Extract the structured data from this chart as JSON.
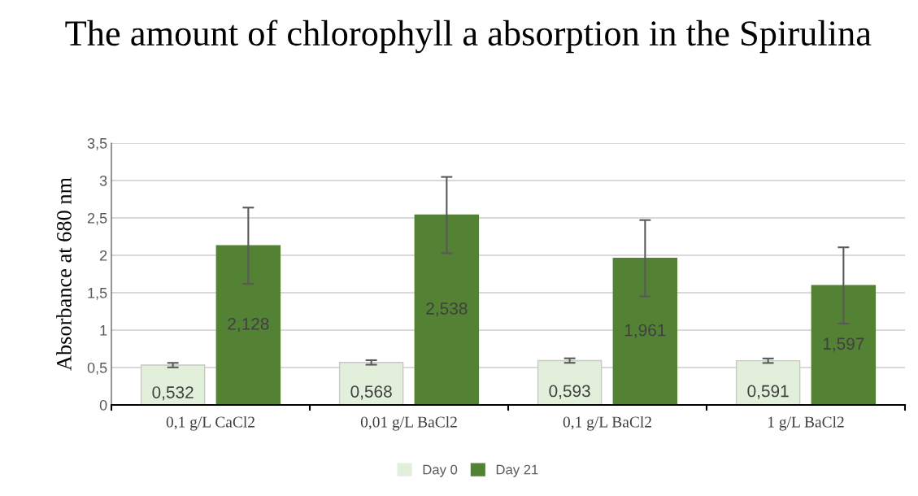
{
  "chart_data": {
    "type": "bar",
    "title": "The amount of chlorophyll a absorption in the Spirulina",
    "ylabel": "Absorbance at 680 nm",
    "categories": [
      "0,1 g/L CaCl2",
      "0,01 g/L BaCl2",
      "0,1 g/L BaCl2",
      "1 g/L BaCl2"
    ],
    "series": [
      {
        "name": "Day 0",
        "color": "#e2efda",
        "values": [
          0.532,
          0.568,
          0.593,
          0.591
        ],
        "errors": [
          0.03,
          0.03,
          0.03,
          0.03
        ],
        "value_labels": [
          "0,532",
          "0,568",
          "0,593",
          "0,591"
        ]
      },
      {
        "name": "Day 21",
        "color": "#548235",
        "values": [
          2.128,
          2.538,
          1.961,
          1.597
        ],
        "errors": [
          0.51,
          0.51,
          0.51,
          0.51
        ],
        "value_labels": [
          "2,128",
          "2,538",
          "1,961",
          "1,597"
        ]
      }
    ],
    "ylim": [
      0,
      3.5
    ],
    "yticks": [
      0,
      {
        "value": 0.5,
        "label": "0,5"
      },
      1,
      {
        "value": 1.5,
        "label": "1,5"
      },
      2,
      {
        "value": 2.5,
        "label": "2,5"
      },
      3,
      {
        "value": 3.5,
        "label": "3,5"
      }
    ],
    "grid": "y",
    "legend": "bottom"
  }
}
